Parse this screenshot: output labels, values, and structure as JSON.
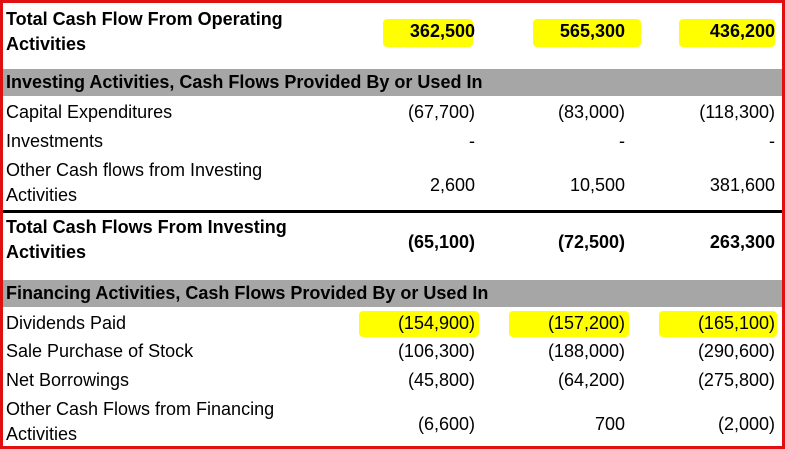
{
  "rows": {
    "op_total": {
      "label": "Total Cash Flow From Operating Activities",
      "v1": "362,500",
      "v2": "565,300",
      "v3": "436,200"
    },
    "investing_header": "Investing Activities, Cash Flows Provided By or Used In",
    "capex": {
      "label": "Capital Expenditures",
      "v1": "(67,700)",
      "v2": "(83,000)",
      "v3": "(118,300)"
    },
    "investments": {
      "label": "Investments",
      "v1": "-",
      "v2": "-",
      "v3": "-"
    },
    "other_inv": {
      "label": "Other Cash flows from Investing Activities",
      "v1": "2,600",
      "v2": "10,500",
      "v3": "381,600"
    },
    "inv_total": {
      "label": "Total Cash Flows From Investing Activities",
      "v1": "(65,100)",
      "v2": "(72,500)",
      "v3": "263,300"
    },
    "financing_header": "Financing Activities, Cash Flows Provided By or Used In",
    "dividends": {
      "label": "Dividends Paid",
      "v1": "(154,900)",
      "v2": "(157,200)",
      "v3": "(165,100)"
    },
    "stock": {
      "label": "Sale Purchase of Stock",
      "v1": "(106,300)",
      "v2": "(188,000)",
      "v3": "(290,600)"
    },
    "borrow": {
      "label": "Net Borrowings",
      "v1": "(45,800)",
      "v2": "(64,200)",
      "v3": "(275,800)"
    },
    "other_fin": {
      "label": "Other Cash Flows from Financing Activities",
      "v1": "(6,600)",
      "v2": "700",
      "v3": "(2,000)"
    }
  },
  "colors": {
    "highlight": "#ffff00",
    "section_bg": "#a6a6a6",
    "frame": "#e01010"
  }
}
